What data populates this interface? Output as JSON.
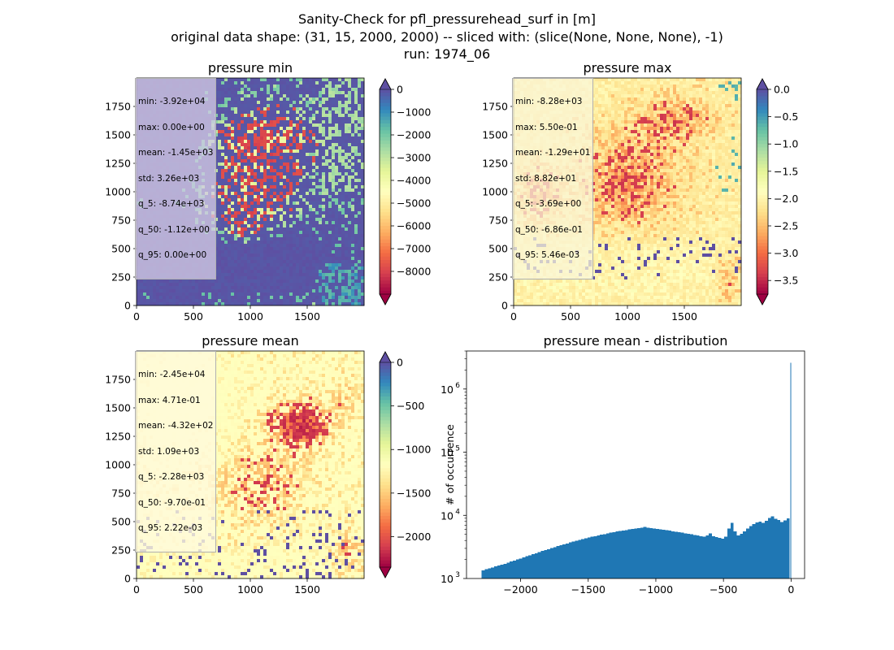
{
  "figure": {
    "title_lines": [
      "Sanity-Check for pfl_pressurehead_surf in [m]",
      "original data shape: (31, 15, 2000, 2000) -- sliced with: (slice(None, None, None), -1)",
      "run: 1974_06"
    ]
  },
  "colors": {
    "hist_bar": "#1f77b4",
    "spectral_low": "#9e0142",
    "spectral_high": "#5e4fa2",
    "pale_yellow": "#ffffbf"
  },
  "chart_data": [
    {
      "type": "heatmap",
      "title": "pressure min",
      "xticks": [
        "0",
        "500",
        "1000",
        "1500"
      ],
      "yticks": [
        "0",
        "250",
        "500",
        "750",
        "1000",
        "1250",
        "1500",
        "1750"
      ],
      "xlim": [
        0,
        2000
      ],
      "ylim": [
        0,
        2000
      ],
      "colormap": "Spectral",
      "colorbar": {
        "vmin": -9000,
        "vmax": 0,
        "ticks": [
          "0",
          "−1000",
          "−2000",
          "−3000",
          "−4000",
          "−5000",
          "−6000",
          "−7000",
          "−8000"
        ],
        "extend": "both"
      },
      "stats": [
        "min: -3.92e+04",
        "max: 0.00e+00",
        "mean: -1.45e+03",
        "std: 3.26e+03",
        "q_5: -8.74e+03",
        "q_50: -1.12e+00",
        "q_95: 0.00e+00"
      ]
    },
    {
      "type": "heatmap",
      "title": "pressure max",
      "xticks": [
        "0",
        "500",
        "1000",
        "1500"
      ],
      "yticks": [
        "0",
        "250",
        "500",
        "750",
        "1000",
        "1250",
        "1500",
        "1750"
      ],
      "xlim": [
        0,
        2000
      ],
      "ylim": [
        0,
        2000
      ],
      "colormap": "Spectral",
      "colorbar": {
        "vmin": -3.75,
        "vmax": 0,
        "ticks": [
          "0.0",
          "−0.5",
          "−1.0",
          "−1.5",
          "−2.0",
          "−2.5",
          "−3.0",
          "−3.5"
        ],
        "extend": "both"
      },
      "stats": [
        "min: -8.28e+03",
        "max: 5.50e-01",
        "mean: -1.29e+01",
        "std: 8.82e+01",
        "q_5: -3.69e+00",
        "q_50: -6.86e-01",
        "q_95: 5.46e-03"
      ]
    },
    {
      "type": "heatmap",
      "title": "pressure mean",
      "xticks": [
        "0",
        "500",
        "1000",
        "1500"
      ],
      "yticks": [
        "0",
        "250",
        "500",
        "750",
        "1000",
        "1250",
        "1500",
        "1750"
      ],
      "xlim": [
        0,
        2000
      ],
      "ylim": [
        0,
        2000
      ],
      "colormap": "Spectral",
      "colorbar": {
        "vmin": -2350,
        "vmax": 0,
        "ticks": [
          "0",
          "−500",
          "−1000",
          "−1500",
          "−2000"
        ],
        "extend": "both"
      },
      "stats": [
        "min: -2.45e+04",
        "max: 4.71e-01",
        "mean: -4.32e+02",
        "std: 1.09e+03",
        "q_5: -2.28e+03",
        "q_50: -9.70e-01",
        "q_95: 2.22e-03"
      ]
    },
    {
      "type": "bar",
      "title": "pressure mean - distribution",
      "ylabel": "# of occurrence",
      "xlabel": "",
      "xticks": [
        "−2000",
        "−1500",
        "−1000",
        "−500",
        "0"
      ],
      "yticks": [
        "10",
        "10",
        "10",
        "10"
      ],
      "ytick_exponents": [
        "3",
        "4",
        "5",
        "6"
      ],
      "yscale": "log",
      "xlim": [
        -2400,
        100
      ],
      "ylim": [
        1000,
        4000000
      ],
      "bin_width": 23,
      "x": [
        -2276,
        -2253,
        -2230,
        -2207,
        -2184,
        -2161,
        -2138,
        -2115,
        -2092,
        -2069,
        -2046,
        -2023,
        -2000,
        -1977,
        -1954,
        -1931,
        -1908,
        -1885,
        -1862,
        -1839,
        -1816,
        -1793,
        -1770,
        -1747,
        -1724,
        -1701,
        -1678,
        -1655,
        -1632,
        -1609,
        -1586,
        -1563,
        -1540,
        -1517,
        -1494,
        -1471,
        -1448,
        -1425,
        -1402,
        -1379,
        -1356,
        -1333,
        -1310,
        -1287,
        -1264,
        -1241,
        -1218,
        -1195,
        -1172,
        -1149,
        -1126,
        -1103,
        -1080,
        -1057,
        -1034,
        -1011,
        -988,
        -965,
        -942,
        -919,
        -896,
        -873,
        -850,
        -827,
        -804,
        -781,
        -758,
        -735,
        -712,
        -689,
        -666,
        -643,
        -620,
        -597,
        -574,
        -551,
        -528,
        -505,
        -482,
        -459,
        -436,
        -413,
        -390,
        -367,
        -344,
        -321,
        -298,
        -275,
        -252,
        -229,
        -206,
        -183,
        -160,
        -137,
        -114,
        -91,
        -68,
        -45,
        -22,
        -4
      ],
      "values": [
        1350,
        1400,
        1450,
        1500,
        1550,
        1600,
        1650,
        1700,
        1780,
        1850,
        1920,
        2000,
        2080,
        2160,
        2250,
        2340,
        2430,
        2520,
        2620,
        2720,
        2820,
        2920,
        3030,
        3140,
        3250,
        3360,
        3480,
        3600,
        3720,
        3840,
        3960,
        4080,
        4200,
        4320,
        4450,
        4580,
        4700,
        4820,
        4940,
        5060,
        5180,
        5300,
        5420,
        5540,
        5650,
        5760,
        5870,
        5980,
        6080,
        6180,
        6280,
        6380,
        6600,
        6400,
        6300,
        6200,
        6100,
        6000,
        5900,
        5800,
        5700,
        5600,
        5500,
        5400,
        5300,
        5200,
        5100,
        5000,
        4900,
        4800,
        4700,
        4600,
        4800,
        5200,
        4700,
        4500,
        4400,
        4300,
        4600,
        6200,
        7600,
        5600,
        4800,
        5100,
        5600,
        6200,
        6800,
        7300,
        7700,
        8000,
        7600,
        8200,
        9100,
        9700,
        8800,
        8400,
        7800,
        8300,
        9000,
        2600000
      ]
    }
  ]
}
